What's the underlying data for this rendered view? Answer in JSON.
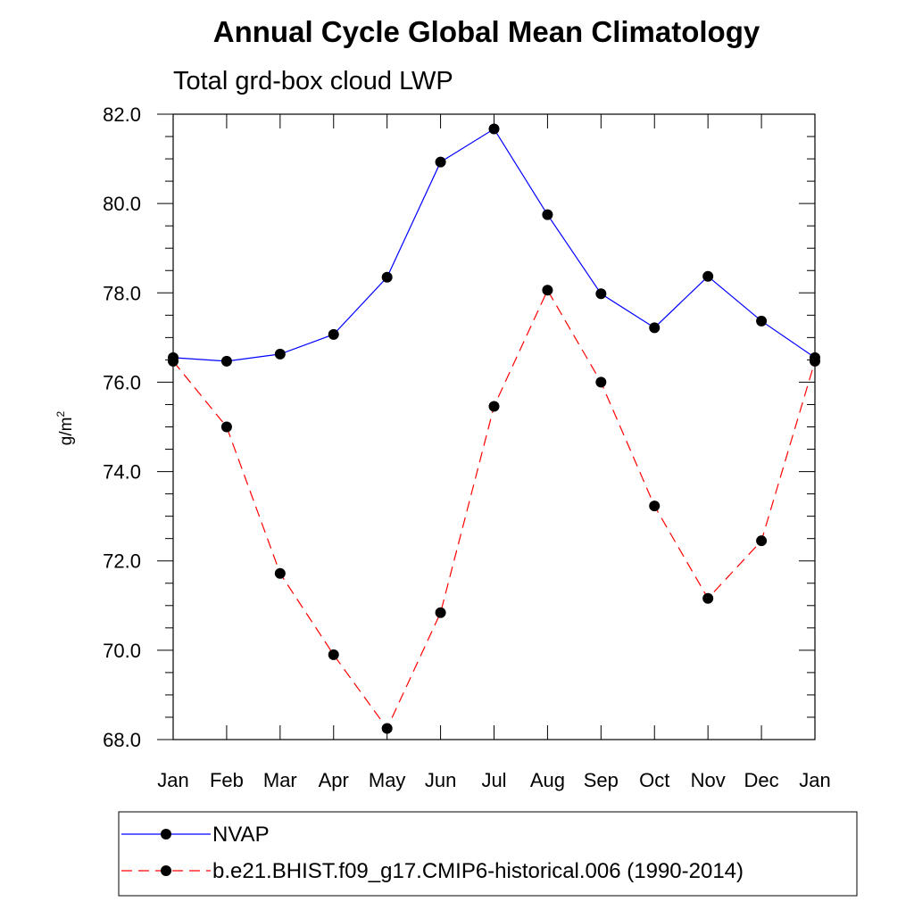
{
  "chart_data": {
    "type": "line",
    "title": "Annual Cycle Global Mean Climatology",
    "subtitle": "Total grd-box cloud LWP",
    "ylabel": "g/m",
    "ylabel_superscript": "2",
    "xlabel": "",
    "categories": [
      "Jan",
      "Feb",
      "Mar",
      "Apr",
      "May",
      "Jun",
      "Jul",
      "Aug",
      "Sep",
      "Oct",
      "Nov",
      "Dec",
      "Jan"
    ],
    "ylim": [
      68.0,
      82.0
    ],
    "yticks": [
      "68.0",
      "70.0",
      "72.0",
      "74.0",
      "76.0",
      "78.0",
      "80.0",
      "82.0"
    ],
    "grid": false,
    "legend_position": "bottom",
    "series": [
      {
        "name": "NVAP",
        "color": "#0000ff",
        "line_style": "solid",
        "marker": "filled-circle",
        "values": [
          76.55,
          76.47,
          76.63,
          77.07,
          78.35,
          80.93,
          81.67,
          79.75,
          77.98,
          77.22,
          78.37,
          77.37,
          76.55
        ]
      },
      {
        "name": "b.e21.BHIST.f09_g17.CMIP6-historical.006 (1990-2014)",
        "color": "#ff0000",
        "line_style": "dashed",
        "marker": "filled-circle",
        "values": [
          76.47,
          75.0,
          71.72,
          69.9,
          68.25,
          70.84,
          75.46,
          78.06,
          76.0,
          73.23,
          71.16,
          72.45,
          76.47
        ]
      }
    ]
  }
}
